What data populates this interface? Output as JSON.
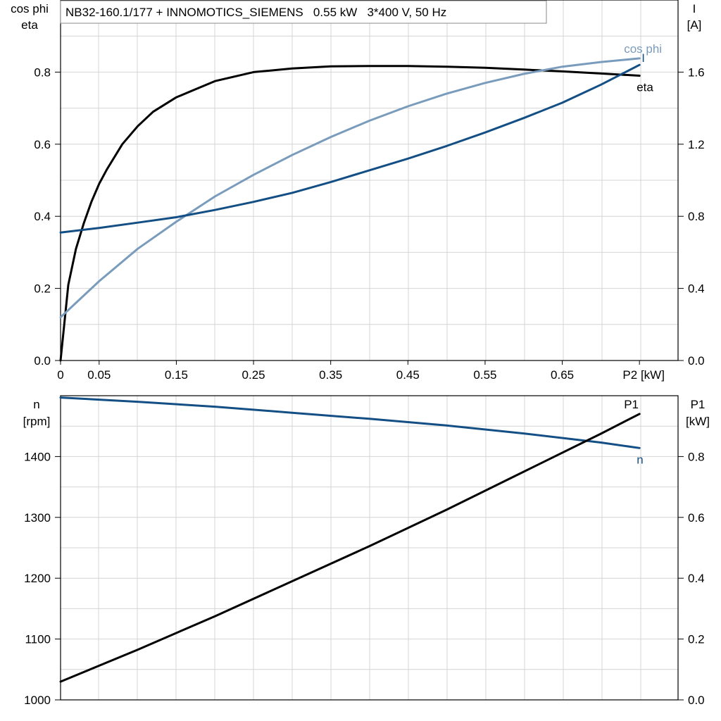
{
  "chart_data": [
    {
      "type": "line",
      "title": "NB32-160.1/177 + INNOMOTICS_SIEMENS   0.55 kW   3*400 V, 50 Hz",
      "ylabel_left": [
        "cos phi",
        "eta"
      ],
      "ylabel_right": [
        "I",
        "[A]"
      ],
      "xlabel": "P2 [kW]",
      "x_tick_labels": [
        "0",
        "0.05",
        "0.15",
        "0.25",
        "0.35",
        "0.45",
        "0.55",
        "0.65",
        "P2 [kW]"
      ],
      "x_ticks": [
        0,
        0.05,
        0.15,
        0.25,
        0.35,
        0.45,
        0.55,
        0.65,
        0.75
      ],
      "xlim": [
        0,
        0.8
      ],
      "ylim_left": [
        0,
        1.0
      ],
      "ylim_right": [
        0,
        2.0
      ],
      "left_tick_labels": [
        "0.0",
        "0.2",
        "0.4",
        "0.6",
        "0.8"
      ],
      "left_ticks": [
        0.0,
        0.2,
        0.4,
        0.6,
        0.8
      ],
      "right_tick_labels": [
        "0.0",
        "0.4",
        "0.8",
        "1.2",
        "1.6"
      ],
      "right_ticks": [
        0.0,
        0.4,
        0.8,
        1.2,
        1.6
      ],
      "grid": true,
      "series": [
        {
          "name": "eta",
          "axis": "left",
          "color": "#000000",
          "label_pos": "below",
          "x": [
            0.0,
            0.01,
            0.02,
            0.03,
            0.04,
            0.05,
            0.06,
            0.08,
            0.1,
            0.12,
            0.15,
            0.2,
            0.25,
            0.3,
            0.35,
            0.4,
            0.45,
            0.5,
            0.55,
            0.6,
            0.65,
            0.7,
            0.75
          ],
          "values": [
            0.0,
            0.21,
            0.31,
            0.38,
            0.44,
            0.49,
            0.53,
            0.6,
            0.65,
            0.69,
            0.73,
            0.775,
            0.8,
            0.81,
            0.816,
            0.817,
            0.817,
            0.815,
            0.812,
            0.807,
            0.802,
            0.796,
            0.79
          ]
        },
        {
          "name": "cos phi",
          "axis": "left",
          "color": "#7a9cbc",
          "label_pos": "above",
          "x": [
            0.0,
            0.05,
            0.1,
            0.15,
            0.2,
            0.25,
            0.3,
            0.35,
            0.4,
            0.45,
            0.5,
            0.55,
            0.6,
            0.65,
            0.7,
            0.75
          ],
          "values": [
            0.12,
            0.22,
            0.31,
            0.385,
            0.455,
            0.515,
            0.57,
            0.62,
            0.665,
            0.705,
            0.74,
            0.77,
            0.795,
            0.815,
            0.828,
            0.838
          ]
        },
        {
          "name": "I",
          "axis": "right",
          "color": "#134f84",
          "label_pos": "above-right",
          "x": [
            0.0,
            0.05,
            0.1,
            0.15,
            0.2,
            0.25,
            0.3,
            0.35,
            0.4,
            0.45,
            0.5,
            0.55,
            0.6,
            0.65,
            0.7,
            0.75
          ],
          "values": [
            0.71,
            0.735,
            0.765,
            0.795,
            0.835,
            0.88,
            0.93,
            0.99,
            1.055,
            1.12,
            1.19,
            1.265,
            1.345,
            1.43,
            1.53,
            1.64
          ]
        }
      ]
    },
    {
      "type": "line",
      "ylabel_left": [
        "n",
        "[rpm]"
      ],
      "ylabel_right": [
        "P1",
        "[kW]"
      ],
      "xlim": [
        0,
        0.8
      ],
      "ylim_left": [
        1000,
        1500
      ],
      "ylim_right": [
        0.0,
        1.0
      ],
      "left_tick_labels": [
        "1000",
        "1100",
        "1200",
        "1300",
        "1400"
      ],
      "left_ticks": [
        1000,
        1100,
        1200,
        1300,
        1400
      ],
      "right_tick_labels": [
        "0.0",
        "0.2",
        "0.4",
        "0.6",
        "0.8"
      ],
      "right_ticks": [
        0.0,
        0.2,
        0.4,
        0.6,
        0.8
      ],
      "grid": true,
      "series": [
        {
          "name": "n",
          "axis": "left",
          "color": "#134f84",
          "label_pos": "below",
          "x": [
            0.0,
            0.1,
            0.2,
            0.3,
            0.4,
            0.5,
            0.6,
            0.7,
            0.75
          ],
          "values": [
            1497,
            1490,
            1482,
            1472,
            1462,
            1451,
            1438,
            1423,
            1414
          ]
        },
        {
          "name": "P1",
          "axis": "right",
          "color": "#000000",
          "label_pos": "above",
          "x": [
            0.0,
            0.1,
            0.2,
            0.3,
            0.4,
            0.5,
            0.6,
            0.7,
            0.75
          ],
          "values": [
            0.06,
            0.165,
            0.275,
            0.39,
            0.505,
            0.625,
            0.75,
            0.875,
            0.94
          ]
        }
      ]
    }
  ]
}
